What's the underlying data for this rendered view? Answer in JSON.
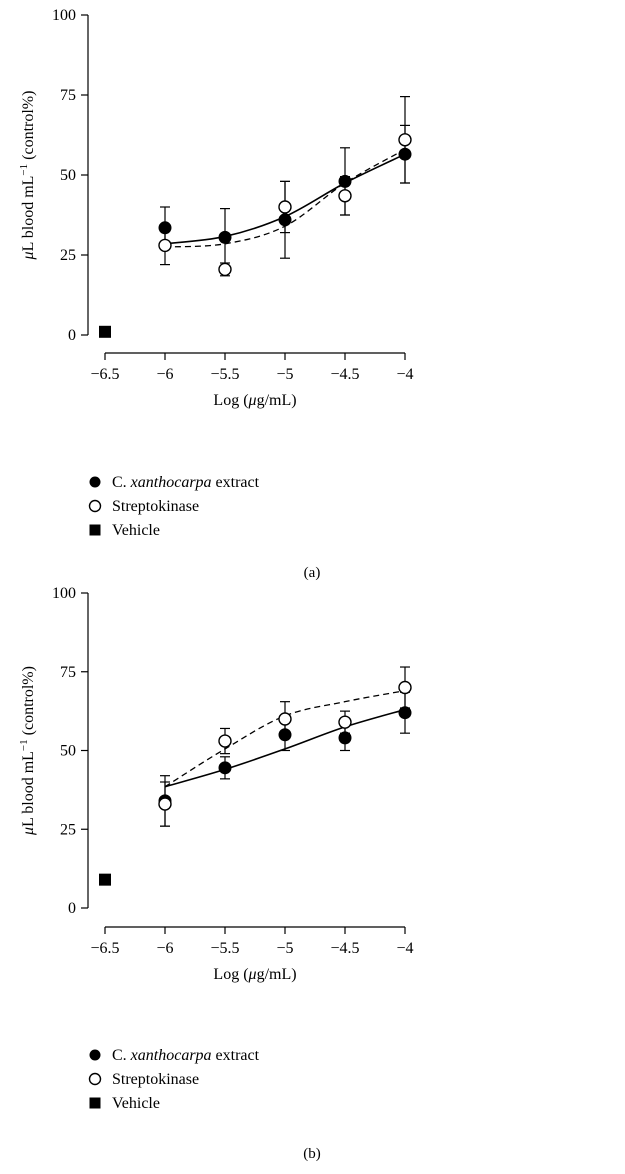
{
  "figures": [
    {
      "caption": "(a)",
      "xlabel_parts": [
        "Log (",
        "μ",
        "g/mL)"
      ],
      "ylabel_parts": [
        "μ",
        "L blood mL",
        "−1",
        " (control%)"
      ],
      "legend": [
        {
          "prefix": "C. ",
          "italic": "xanthocarpa",
          "suffix": " extract",
          "marker": "filled-circle"
        },
        {
          "prefix": "Streptokinase",
          "italic": "",
          "suffix": "",
          "marker": "open-circle"
        },
        {
          "prefix": "Vehicle",
          "italic": "",
          "suffix": "",
          "marker": "filled-square"
        }
      ]
    },
    {
      "caption": "(b)",
      "xlabel_parts": [
        "Log (",
        "μ",
        "g/mL)"
      ],
      "ylabel_parts": [
        "μ",
        "L blood mL",
        "−1",
        " (control%)"
      ],
      "legend": [
        {
          "prefix": "C. ",
          "italic": "xanthocarpa",
          "suffix": " extract",
          "marker": "filled-circle"
        },
        {
          "prefix": "Streptokinase",
          "italic": "",
          "suffix": "",
          "marker": "open-circle"
        },
        {
          "prefix": "Vehicle",
          "italic": "",
          "suffix": "",
          "marker": "filled-square"
        }
      ]
    }
  ],
  "chart_data": [
    {
      "type": "scatter",
      "xlim": [
        -6.5,
        -4
      ],
      "ylim": [
        0,
        100
      ],
      "xticks": [
        -6.5,
        -6,
        -5.5,
        -5,
        -4.5,
        -4
      ],
      "xtick_labels": [
        "−6.5",
        "−6",
        "−5.5",
        "−5",
        "−4.5",
        "−4"
      ],
      "yticks": [
        0,
        25,
        50,
        75,
        100
      ],
      "ytick_labels": [
        "0",
        "25",
        "50",
        "75",
        "100"
      ],
      "series": [
        {
          "name": "C. xanthocarpa extract",
          "marker": "filled-circle",
          "line": "solid",
          "x": [
            -6,
            -5.5,
            -5,
            -4.5,
            -4
          ],
          "y": [
            33.5,
            30.5,
            36,
            48,
            56.5
          ],
          "err": [
            6.5,
            9,
            12,
            10.5,
            9
          ],
          "fit_y": [
            28.5,
            30.8,
            37,
            47.5,
            56.5
          ]
        },
        {
          "name": "Streptokinase",
          "marker": "open-circle",
          "line": "dashed",
          "x": [
            -6,
            -5.5,
            -5,
            -4.5,
            -4
          ],
          "y": [
            28,
            20.5,
            40,
            43.5,
            61
          ],
          "err": [
            6,
            2,
            8,
            6,
            13.5
          ],
          "fit_y": [
            27.5,
            28.5,
            34,
            47.5,
            58
          ]
        },
        {
          "name": "Vehicle",
          "marker": "filled-square",
          "line": "none",
          "x": [
            -6.5
          ],
          "y": [
            1
          ],
          "err": [
            0
          ]
        }
      ]
    },
    {
      "type": "scatter",
      "xlim": [
        -6.5,
        -4
      ],
      "ylim": [
        0,
        100
      ],
      "xticks": [
        -6.5,
        -6,
        -5.5,
        -5,
        -4.5,
        -4
      ],
      "xtick_labels": [
        "−6.5",
        "−6",
        "−5.5",
        "−5",
        "−4.5",
        "−4"
      ],
      "yticks": [
        0,
        25,
        50,
        75,
        100
      ],
      "ytick_labels": [
        "0",
        "25",
        "50",
        "75",
        "100"
      ],
      "series": [
        {
          "name": "C. xanthocarpa extract",
          "marker": "filled-circle",
          "line": "solid",
          "x": [
            -6,
            -5.5,
            -5,
            -4.5,
            -4
          ],
          "y": [
            34,
            44.5,
            55,
            54,
            62
          ],
          "err": [
            8,
            3.5,
            5,
            4,
            6.5
          ],
          "fit_y": [
            38.5,
            44,
            50.5,
            57.5,
            63
          ]
        },
        {
          "name": "Streptokinase",
          "marker": "open-circle",
          "line": "dashed",
          "x": [
            -6,
            -5.5,
            -5,
            -4.5,
            -4
          ],
          "y": [
            33,
            53,
            60,
            59,
            70
          ],
          "err": [
            7,
            4,
            5.5,
            3.5,
            6.5
          ],
          "fit_y": [
            38.5,
            50.5,
            61,
            65.5,
            69
          ]
        },
        {
          "name": "Vehicle",
          "marker": "filled-square",
          "line": "none",
          "x": [
            -6.5
          ],
          "y": [
            9
          ],
          "err": [
            0
          ]
        }
      ]
    }
  ]
}
